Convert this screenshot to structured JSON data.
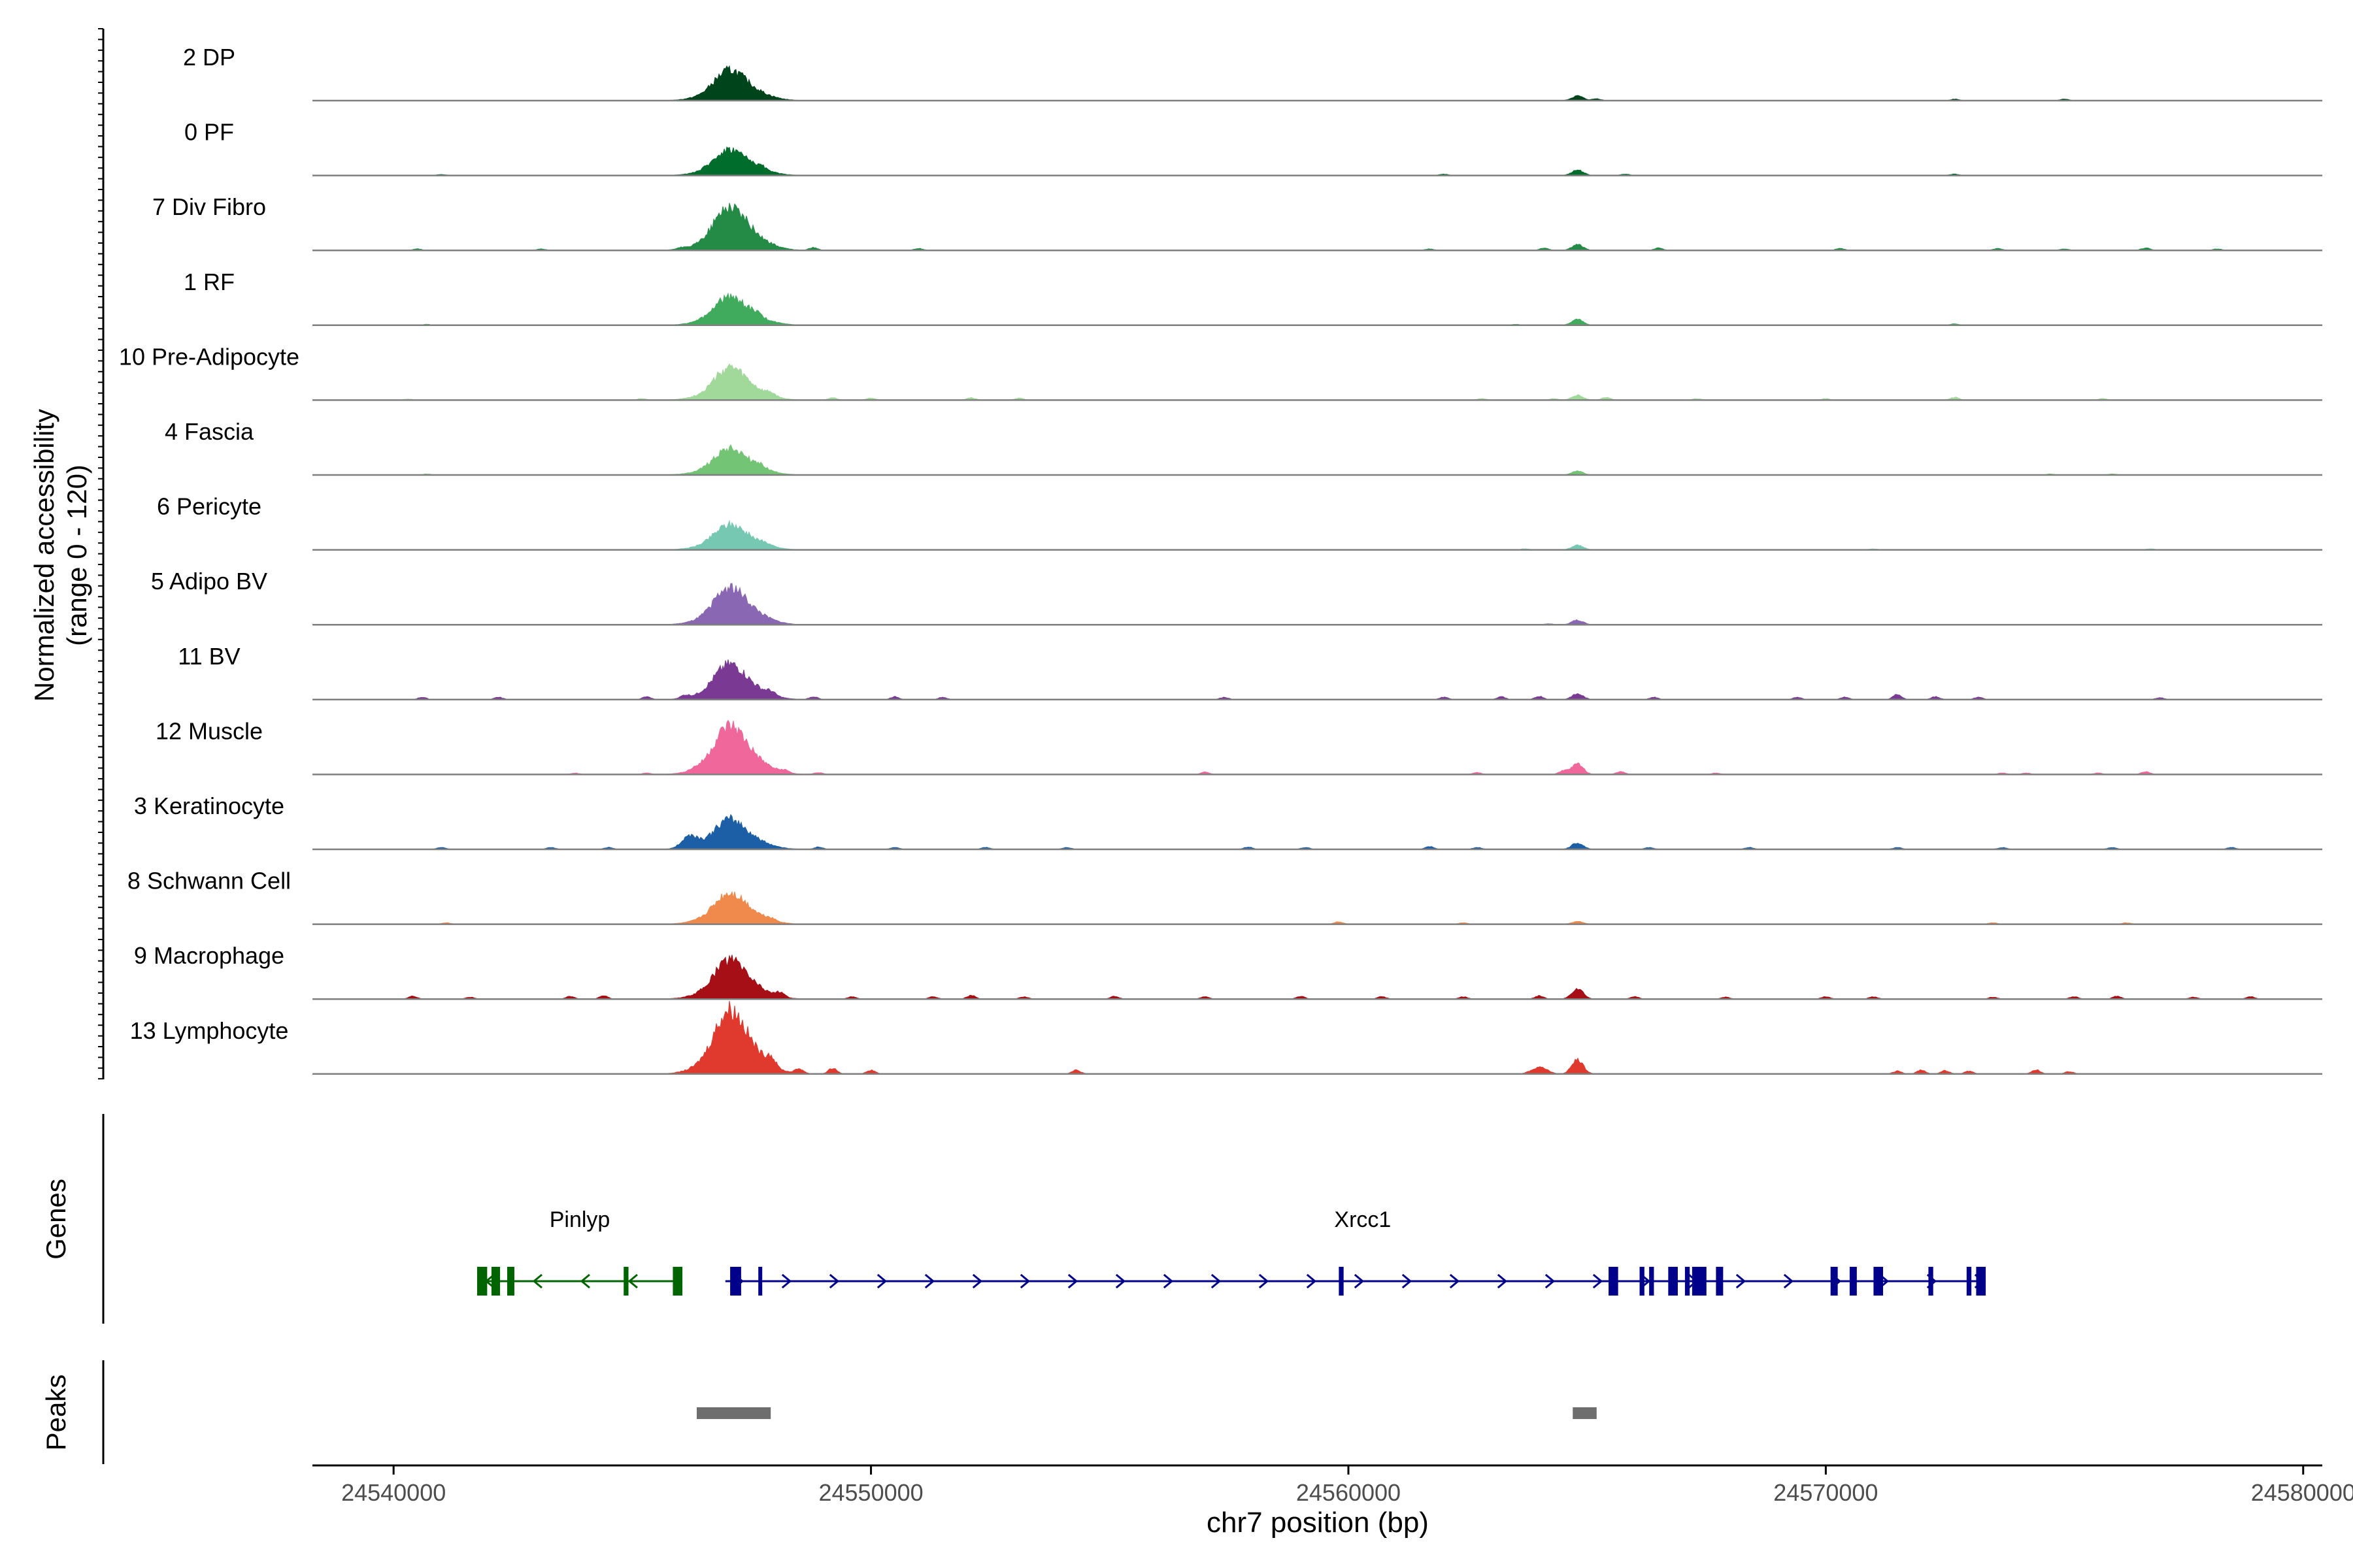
{
  "chart_data": {
    "type": "area",
    "subtype": "genome-coverage-tracks",
    "xlabel": "chr7 position (bp)",
    "xlim": [
      24538300,
      24580400
    ],
    "xticks": [
      24540000,
      24550000,
      24560000,
      24570000,
      24580000
    ],
    "xtick_labels": [
      "24540000",
      "24550000",
      "24560000",
      "24570000",
      "24580000"
    ],
    "ylabel_line1": "Normalized accessibility",
    "ylabel_line2": "(range 0 - 120)",
    "ylim": [
      0,
      120
    ],
    "peak_center": 24547000,
    "tracks": [
      {
        "name": "2 DP",
        "color": "#00441b",
        "peak": 45,
        "secondary": 10,
        "noise": [
          [
            24565200,
            4
          ],
          [
            24572700,
            3
          ],
          [
            24575000,
            3
          ]
        ]
      },
      {
        "name": "0 PF",
        "color": "#006d2c",
        "peak": 38,
        "secondary": 12,
        "noise": [
          [
            24541000,
            2
          ],
          [
            24547700,
            5
          ],
          [
            24562000,
            3
          ],
          [
            24565800,
            3
          ],
          [
            24572700,
            3
          ]
        ]
      },
      {
        "name": "7 Div Fibro",
        "color": "#238b45",
        "peak": 65,
        "secondary": 12,
        "noise": [
          [
            24540500,
            3
          ],
          [
            24543100,
            3
          ],
          [
            24546000,
            3
          ],
          [
            24548800,
            6
          ],
          [
            24551000,
            4
          ],
          [
            24561700,
            3
          ],
          [
            24564100,
            5
          ],
          [
            24566500,
            5
          ],
          [
            24570300,
            4
          ],
          [
            24573600,
            4
          ],
          [
            24575000,
            3
          ],
          [
            24576700,
            5
          ],
          [
            24578200,
            3
          ]
        ]
      },
      {
        "name": "1 RF",
        "color": "#41ab5d",
        "peak": 42,
        "secondary": 12,
        "noise": [
          [
            24540700,
            2
          ],
          [
            24547600,
            5
          ],
          [
            24563500,
            2
          ],
          [
            24572700,
            3
          ]
        ]
      },
      {
        "name": "10 Pre-Adipocyte",
        "color": "#a1d99b",
        "peak": 48,
        "secondary": 10,
        "noise": [
          [
            24540300,
            2
          ],
          [
            24545200,
            3
          ],
          [
            24547900,
            6
          ],
          [
            24549200,
            5
          ],
          [
            24550000,
            4
          ],
          [
            24552100,
            5
          ],
          [
            24553100,
            4
          ],
          [
            24562800,
            3
          ],
          [
            24564300,
            3
          ],
          [
            24565400,
            6
          ],
          [
            24567300,
            3
          ],
          [
            24570000,
            3
          ],
          [
            24572700,
            6
          ],
          [
            24575800,
            3
          ]
        ]
      },
      {
        "name": "4 Fascia",
        "color": "#74c476",
        "peak": 40,
        "secondary": 8,
        "noise": [
          [
            24540700,
            2
          ],
          [
            24547700,
            5
          ],
          [
            24574700,
            2
          ],
          [
            24576000,
            2
          ]
        ]
      },
      {
        "name": "6 Pericyte",
        "color": "#76c8b3",
        "peak": 38,
        "secondary": 10,
        "noise": [
          [
            24547800,
            4
          ],
          [
            24563700,
            2
          ],
          [
            24571000,
            2
          ],
          [
            24576800,
            2
          ]
        ]
      },
      {
        "name": "5 Adipo BV",
        "color": "#8a67b3",
        "peak": 55,
        "secondary": 10,
        "noise": [
          [
            24564200,
            2
          ]
        ]
      },
      {
        "name": "11 BV",
        "color": "#7a3a94",
        "peak": 52,
        "secondary": 12,
        "noise": [
          [
            24540600,
            5
          ],
          [
            24542200,
            5
          ],
          [
            24545300,
            6
          ],
          [
            24546100,
            6
          ],
          [
            24547900,
            7
          ],
          [
            24548800,
            6
          ],
          [
            24550500,
            6
          ],
          [
            24551500,
            5
          ],
          [
            24557400,
            5
          ],
          [
            24562000,
            5
          ],
          [
            24563200,
            6
          ],
          [
            24564000,
            7
          ],
          [
            24566400,
            5
          ],
          [
            24569400,
            5
          ],
          [
            24570400,
            5
          ],
          [
            24571500,
            11
          ],
          [
            24572300,
            6
          ],
          [
            24573200,
            5
          ],
          [
            24577000,
            4
          ]
        ]
      },
      {
        "name": "12 Muscle",
        "color": "#f0679b",
        "peak": 72,
        "secondary": 22,
        "noise": [
          [
            24543800,
            3
          ],
          [
            24545300,
            3
          ],
          [
            24546300,
            3
          ],
          [
            24548200,
            5
          ],
          [
            24548900,
            4
          ],
          [
            24557000,
            5
          ],
          [
            24562700,
            4
          ],
          [
            24564500,
            8
          ],
          [
            24565700,
            6
          ],
          [
            24567700,
            3
          ],
          [
            24573700,
            3
          ],
          [
            24574200,
            3
          ],
          [
            24575700,
            3
          ],
          [
            24576700,
            6
          ]
        ]
      },
      {
        "name": "3 Keratinocyte",
        "color": "#1d5fa6",
        "peak": 44,
        "secondary": 14,
        "side_peak": [
          24546200,
          25
        ],
        "noise": [
          [
            24541000,
            4
          ],
          [
            24543300,
            4
          ],
          [
            24544500,
            4
          ],
          [
            24548900,
            5
          ],
          [
            24550500,
            4
          ],
          [
            24552400,
            4
          ],
          [
            24554100,
            4
          ],
          [
            24557900,
            5
          ],
          [
            24559100,
            4
          ],
          [
            24561700,
            6
          ],
          [
            24562700,
            4
          ],
          [
            24566300,
            4
          ],
          [
            24568400,
            4
          ],
          [
            24571500,
            4
          ],
          [
            24573700,
            4
          ],
          [
            24576000,
            4
          ],
          [
            24578500,
            4
          ]
        ]
      },
      {
        "name": "8 Schwann Cell",
        "color": "#f0894c",
        "peak": 46,
        "secondary": 6,
        "noise": [
          [
            24541100,
            3
          ],
          [
            24547900,
            4
          ],
          [
            24559800,
            5
          ],
          [
            24562400,
            3
          ],
          [
            24573500,
            3
          ],
          [
            24576300,
            3
          ]
        ]
      },
      {
        "name": "9 Macrophage",
        "color": "#a50f15",
        "peak": 58,
        "secondary": 22,
        "noise": [
          [
            24540400,
            6
          ],
          [
            24541600,
            4
          ],
          [
            24543700,
            6
          ],
          [
            24544400,
            7
          ],
          [
            24548100,
            8
          ],
          [
            24549600,
            5
          ],
          [
            24551300,
            5
          ],
          [
            24552100,
            8
          ],
          [
            24553200,
            5
          ],
          [
            24555100,
            6
          ],
          [
            24557000,
            5
          ],
          [
            24559000,
            6
          ],
          [
            24560700,
            5
          ],
          [
            24562400,
            5
          ],
          [
            24564000,
            7
          ],
          [
            24566000,
            5
          ],
          [
            24567900,
            4
          ],
          [
            24570000,
            5
          ],
          [
            24571000,
            5
          ],
          [
            24573500,
            4
          ],
          [
            24575200,
            5
          ],
          [
            24576100,
            6
          ],
          [
            24577700,
            4
          ],
          [
            24578900,
            5
          ]
        ]
      },
      {
        "name": "13 Lymphocyte",
        "color": "#e03a2f",
        "peak": 95,
        "secondary": 30,
        "side_peak": [
          24564000,
          15
        ],
        "noise": [
          [
            24547900,
            18
          ],
          [
            24548500,
            10
          ],
          [
            24549200,
            12
          ],
          [
            24550000,
            8
          ],
          [
            24554300,
            8
          ],
          [
            24571500,
            6
          ],
          [
            24572000,
            8
          ],
          [
            24572500,
            7
          ],
          [
            24573000,
            6
          ],
          [
            24574400,
            9
          ],
          [
            24575100,
            5
          ]
        ]
      }
    ],
    "genes": [
      {
        "name": "Pinlyp",
        "strand": "-",
        "color": "#006400",
        "start": 24541750,
        "end": 24546050,
        "label_pos": 24543900,
        "exons": [
          [
            24541750,
            24541960
          ],
          [
            24542050,
            24542230
          ],
          [
            24542380,
            24542530
          ],
          [
            24544820,
            24544920
          ],
          [
            24545850,
            24546050
          ]
        ]
      },
      {
        "name": "Xrcc1",
        "strand": "+",
        "color": "#00008b",
        "start": 24546950,
        "end": 24573350,
        "label_pos": 24560300,
        "exons": [
          [
            24547050,
            24547280
          ],
          [
            24547640,
            24547720
          ],
          [
            24559800,
            24559900
          ],
          [
            24565450,
            24565650
          ],
          [
            24566100,
            24566200
          ],
          [
            24566300,
            24566400
          ],
          [
            24566700,
            24566900
          ],
          [
            24567050,
            24567150
          ],
          [
            24567200,
            24567500
          ],
          [
            24567700,
            24567850
          ],
          [
            24570100,
            24570250
          ],
          [
            24570500,
            24570650
          ],
          [
            24571000,
            24571200
          ],
          [
            24572150,
            24572250
          ],
          [
            24572950,
            24573050
          ],
          [
            24573150,
            24573350
          ]
        ]
      }
    ],
    "peaks": [
      [
        24546350,
        24547900
      ],
      [
        24564700,
        24565200
      ]
    ],
    "track_labels": {
      "genes": "Genes",
      "peaks": "Peaks"
    }
  }
}
